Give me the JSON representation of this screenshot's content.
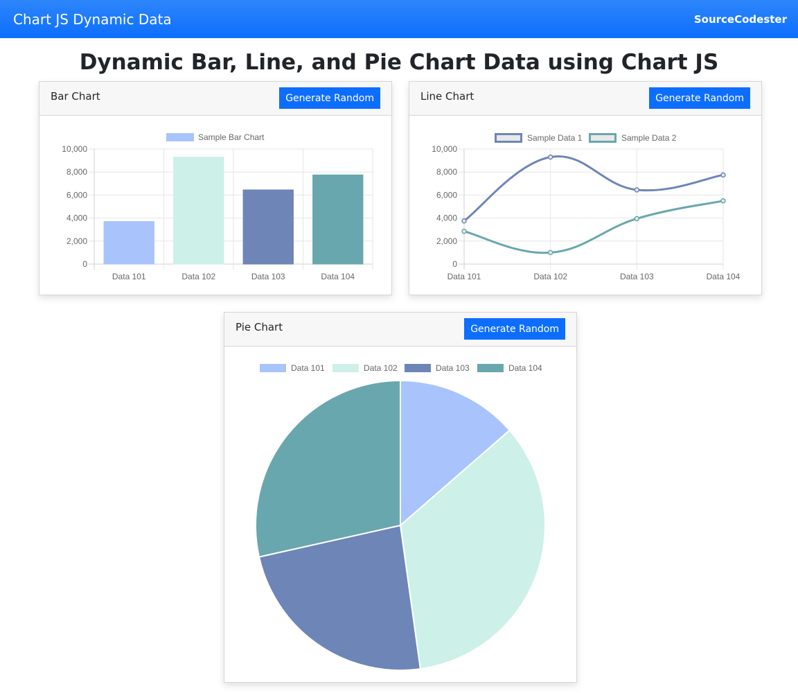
{
  "navbar": {
    "brand": "Chart JS Dynamic Data",
    "right_link": "SourceCodester"
  },
  "page_title": "Dynamic Bar, Line, and Pie Chart Data using Chart JS",
  "colors": {
    "primary": "#0d6efd",
    "c1": "#a9c4fc",
    "c2": "#cdf0e9",
    "c3": "#6e85b7",
    "c4": "#68a7ad"
  },
  "bar_card": {
    "title": "Bar Chart",
    "button": "Generate Random"
  },
  "line_card": {
    "title": "Line Chart",
    "button": "Generate Random"
  },
  "pie_card": {
    "title": "Pie Chart",
    "button": "Generate Random"
  },
  "chart_data": [
    {
      "type": "bar",
      "categories": [
        "Data 101",
        "Data 102",
        "Data 103",
        "Data 104"
      ],
      "series": [
        {
          "name": "Sample Bar Chart",
          "values": [
            3700,
            9300,
            6450,
            7750
          ]
        }
      ],
      "ylim": [
        0,
        10000
      ],
      "yticks": [
        "0",
        "2,000",
        "4,000",
        "6,000",
        "8,000",
        "10,000"
      ],
      "legend": "top",
      "grid": true
    },
    {
      "type": "line",
      "categories": [
        "Data 101",
        "Data 102",
        "Data 103",
        "Data 104"
      ],
      "series": [
        {
          "name": "Sample Data 1",
          "values": [
            3750,
            9300,
            6450,
            7750
          ]
        },
        {
          "name": "Sample Data 2",
          "values": [
            2850,
            1000,
            3950,
            5500
          ]
        }
      ],
      "ylim": [
        0,
        10000
      ],
      "yticks": [
        "0",
        "2,000",
        "4,000",
        "6,000",
        "8,000",
        "10,000"
      ],
      "legend": "top",
      "grid": true
    },
    {
      "type": "pie",
      "categories": [
        "Data 101",
        "Data 102",
        "Data 103",
        "Data 104"
      ],
      "values": [
        3700,
        9300,
        6450,
        7750
      ],
      "legend": "top"
    }
  ]
}
